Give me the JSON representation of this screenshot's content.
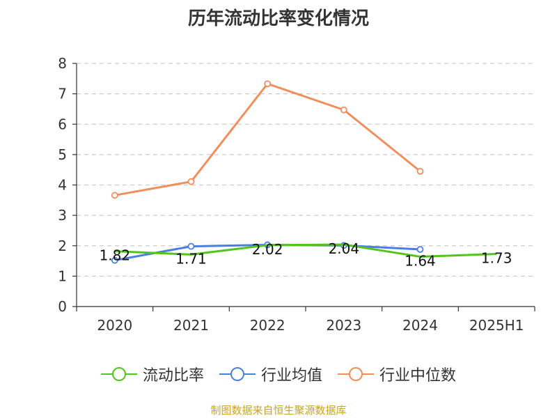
{
  "title": "历年流动比率变化情况",
  "source": "制图数据来自恒生聚源数据库",
  "chart_data": {
    "type": "line",
    "categories": [
      "2020",
      "2021",
      "2022",
      "2023",
      "2024",
      "2025H1"
    ],
    "ylim": [
      0,
      8
    ],
    "yticks": [
      0,
      1,
      2,
      3,
      4,
      5,
      6,
      7,
      8
    ],
    "grid": true,
    "legend_position": "bottom",
    "series": [
      {
        "name": "流动比率",
        "color": "#52c41a",
        "values": [
          1.82,
          1.71,
          2.02,
          2.04,
          1.64,
          1.73
        ],
        "labels": [
          "1.82",
          "1.71",
          "2.02",
          "2.04",
          "1.64",
          "1.73"
        ],
        "markers": false
      },
      {
        "name": "行业均值",
        "color": "#4a7fe0",
        "values": [
          1.52,
          1.98,
          2.03,
          2.01,
          1.88,
          null
        ],
        "markers": true
      },
      {
        "name": "行业中位数",
        "color": "#f28e5c",
        "values": [
          3.66,
          4.11,
          7.33,
          6.47,
          4.45,
          null
        ],
        "markers": true
      }
    ]
  }
}
